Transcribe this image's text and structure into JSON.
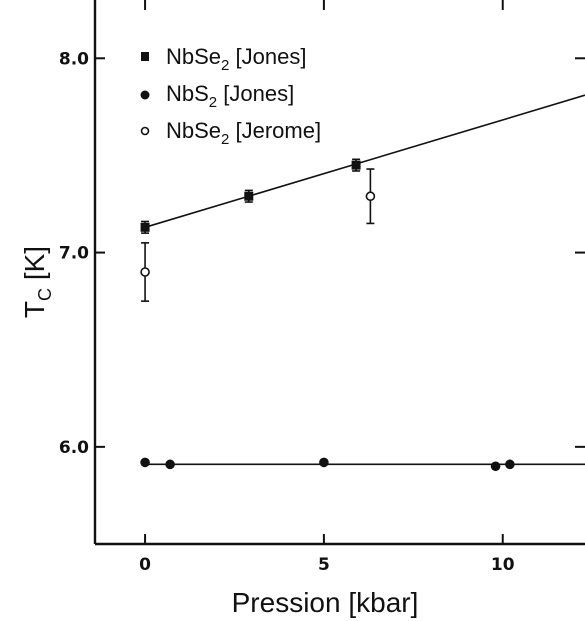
{
  "chart_data": {
    "type": "scatter",
    "title": "",
    "xlabel": "Pression [kbar]",
    "ylabel": {
      "main": "T",
      "sub": "C",
      "rest": " [K]"
    },
    "xlim": [
      -1.4,
      12.3
    ],
    "ylim": [
      5.5,
      8.3
    ],
    "xticks": [
      {
        "value": 0,
        "label": "0"
      },
      {
        "value": 5,
        "label": "5"
      },
      {
        "value": 10,
        "label": "10"
      }
    ],
    "yticks": [
      {
        "value": 6.0,
        "label": "6.0"
      },
      {
        "value": 7.0,
        "label": "7.0"
      },
      {
        "value": 8.0,
        "label": "8.0"
      }
    ],
    "grid": false,
    "legend_position": "top-left",
    "series": [
      {
        "name": {
          "pre": "NbSe",
          "sub": "2",
          "post": " [Jones]"
        },
        "marker": "filled-square",
        "color": "#111111",
        "points": [
          {
            "x": 0.0,
            "y": 7.13,
            "err": 0.03
          },
          {
            "x": 2.9,
            "y": 7.29,
            "err": 0.03
          },
          {
            "x": 5.9,
            "y": 7.45,
            "err": 0.03
          }
        ]
      },
      {
        "name": {
          "pre": "NbS",
          "sub": "2",
          "post": " [Jones]"
        },
        "marker": "filled-circle",
        "color": "#111111",
        "points": [
          {
            "x": 0.0,
            "y": 5.92
          },
          {
            "x": 0.7,
            "y": 5.91
          },
          {
            "x": 5.0,
            "y": 5.92
          },
          {
            "x": 9.8,
            "y": 5.9
          },
          {
            "x": 10.2,
            "y": 5.91
          }
        ]
      },
      {
        "name": {
          "pre": "NbSe",
          "sub": "2",
          "post": " [Jerome]"
        },
        "marker": "open-circle",
        "color": "#111111",
        "points": [
          {
            "x": 0.0,
            "y": 6.9,
            "err": 0.15
          },
          {
            "x": 6.3,
            "y": 7.29,
            "err": 0.14
          }
        ]
      }
    ],
    "fit_lines": [
      {
        "series": 0,
        "x": [
          0.0,
          12.3
        ],
        "y": [
          7.13,
          7.81
        ]
      },
      {
        "series": 1,
        "x": [
          0.0,
          12.3
        ],
        "y": [
          5.91,
          5.91
        ]
      }
    ]
  }
}
